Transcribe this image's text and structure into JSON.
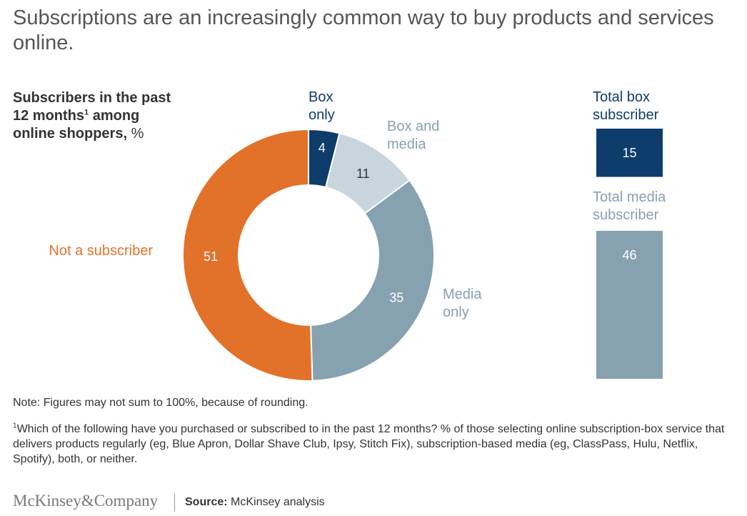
{
  "title": "Subscriptions are an increasingly common way to buy products and services online.",
  "subtitle": {
    "bold_line1": "Subscribers in the past",
    "bold_line2": "12 months",
    "superscript": "1",
    "bold_line2_rest": " among",
    "bold_line3": "online shoppers, ",
    "unit": "%"
  },
  "chart_data": [
    {
      "type": "pie",
      "subtype": "donut",
      "slices": [
        {
          "label_lines": [
            "Box",
            "only"
          ],
          "value": 4,
          "value_label": "4",
          "color": "#0e3d6b"
        },
        {
          "label_lines": [
            "Box and",
            "media"
          ],
          "value": 11,
          "value_label": "11",
          "color": "#c8d5dc"
        },
        {
          "label_lines": [
            "Media",
            "only"
          ],
          "value": 35,
          "value_label": "35",
          "color": "#86a1af"
        },
        {
          "label_lines": [
            "Not a subscriber"
          ],
          "value": 51,
          "value_label": "51",
          "color": "#e2722a"
        }
      ]
    },
    {
      "type": "bar",
      "bars": [
        {
          "label_lines": [
            "Total box",
            "subscriber"
          ],
          "value": 15,
          "value_label": "15",
          "color": "#0e3d6b",
          "label_color": "#0e3d6b"
        },
        {
          "label_lines": [
            "Total media",
            "subscriber"
          ],
          "value": 46,
          "value_label": "46",
          "color": "#86a1af",
          "label_color": "#86a1af"
        }
      ]
    }
  ],
  "note": "Note: Figures may not sum to 100%, because of rounding.",
  "footnote": {
    "marker": "1",
    "text": "Which of the following have you purchased or subscribed to in the past 12 months? % of those selecting online subscription-box service that delivers products regularly (eg, Blue Apron, Dollar Shave Club, Ipsy, Stitch Fix), subscription-based media (eg, ClassPass, Hulu, Netflix, Spotify), both, or neither."
  },
  "logo": "McKinsey&Company",
  "source": {
    "label": "Source:",
    "text": " McKinsey analysis"
  }
}
